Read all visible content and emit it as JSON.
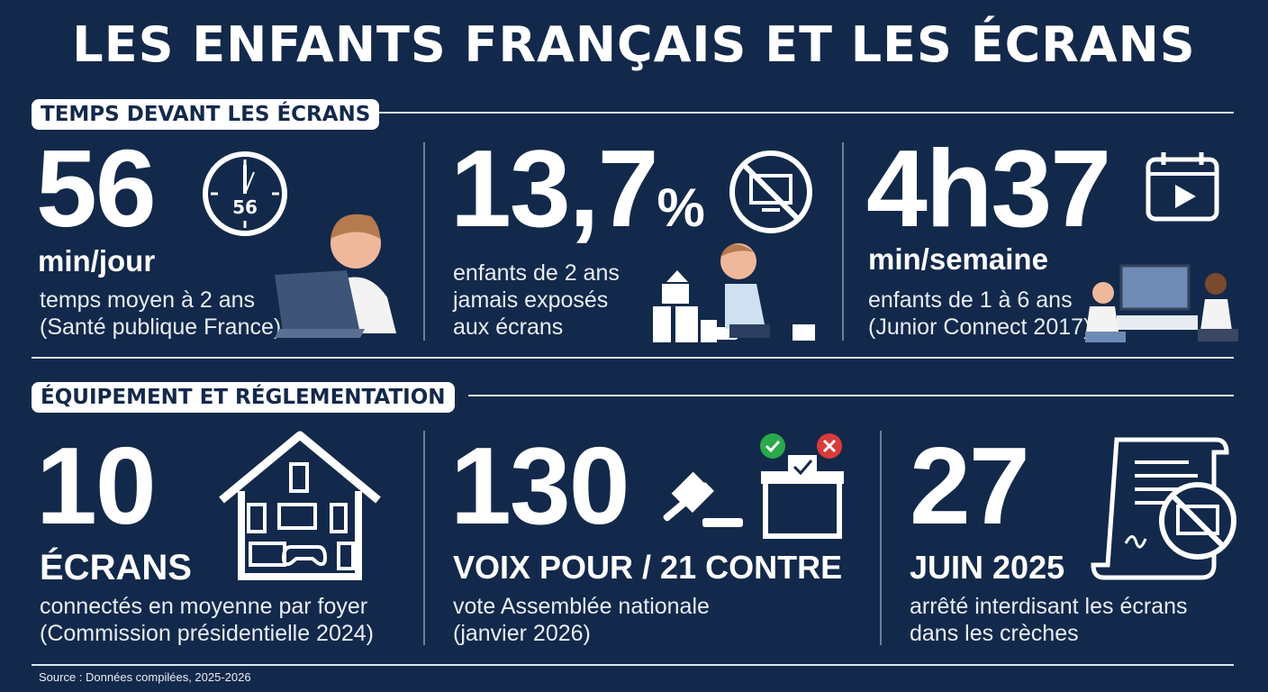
{
  "title": "LES ENFANTS FRANÇAIS ET LES ÉCRANS",
  "colors": {
    "background": "#13294b",
    "text": "#ffffff",
    "check": "#2aa84a",
    "cross": "#d93a3a"
  },
  "sections": [
    {
      "label": "TEMPS DEVANT LES ÉCRANS",
      "stats": [
        {
          "value": "56",
          "unit": "min/jour",
          "desc1": "temps moyen à 2 ans",
          "desc2": "(Santé publique France)",
          "icon": "clock-icon",
          "icon_text": "56"
        },
        {
          "value": "13,7",
          "suffix": "%",
          "desc1": "enfants de 2 ans",
          "desc2": "jamais exposés",
          "desc3": "aux écrans",
          "icon": "no-screen-icon"
        },
        {
          "value": "4h37",
          "unit": "min/semaine",
          "desc1": "enfants de 1 à 6 ans",
          "desc2": "(Junior Connect 2017)",
          "icon": "calendar-play-icon"
        }
      ]
    },
    {
      "label": "ÉQUIPEMENT ET RÉGLEMENTATION",
      "stats": [
        {
          "value": "10",
          "unit": "ÉCRANS",
          "desc1": "connectés en moyenne par foyer",
          "desc2": "(Commission présidentielle 2024)",
          "icon": "house-devices-icon"
        },
        {
          "value": "130",
          "unit": "VOIX POUR / 21 CONTRE",
          "desc1": "vote Assemblée nationale",
          "desc2": "(janvier 2026)",
          "icon": "gavel-ballot-icon"
        },
        {
          "value": "27",
          "unit": "JUIN 2025",
          "desc1": "arrêté interdisant les écrans",
          "desc2": "dans les crèches",
          "icon": "decree-no-screen-icon"
        }
      ]
    }
  ],
  "source": "Source : Données compilées, 2025-2026"
}
